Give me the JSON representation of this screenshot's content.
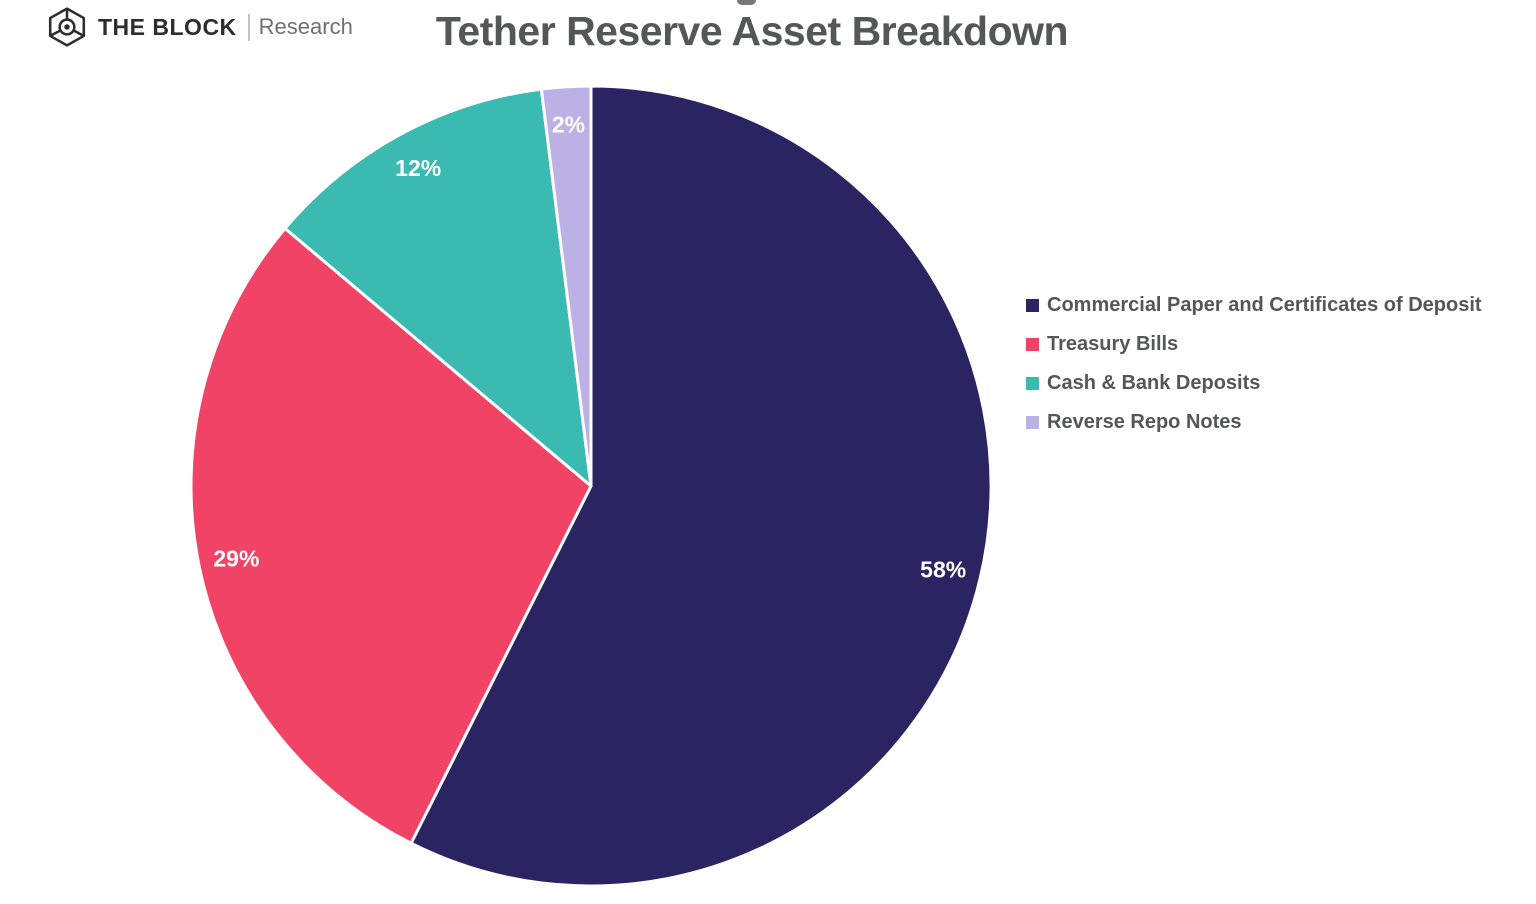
{
  "page": {
    "background": "#FFFFFF"
  },
  "brand": {
    "name": "THE BLOCK",
    "suffix": "Research",
    "icon": "block-cube-logo-icon"
  },
  "chart_data": {
    "type": "pie",
    "title": "Tether Reserve Asset Breakdown",
    "categories": [
      "Commercial Paper and Certificates of Deposit",
      "Treasury Bills",
      "Cash & Bank Deposits",
      "Reverse Repo Notes"
    ],
    "values": [
      58,
      29,
      12,
      2
    ],
    "value_labels": [
      "58%",
      "29%",
      "12%",
      "2%"
    ],
    "colors": [
      "#2A2562",
      "#F04365",
      "#3ABAB0",
      "#BCB1E5"
    ],
    "start_angle_deg": 0,
    "direction": "clockwise",
    "slice_border_color": "#FFFFFF",
    "data_label_color": "#FFFFFF",
    "legend_position": "right",
    "title_color": "#55565A",
    "legend_text_color": "#55565A"
  }
}
